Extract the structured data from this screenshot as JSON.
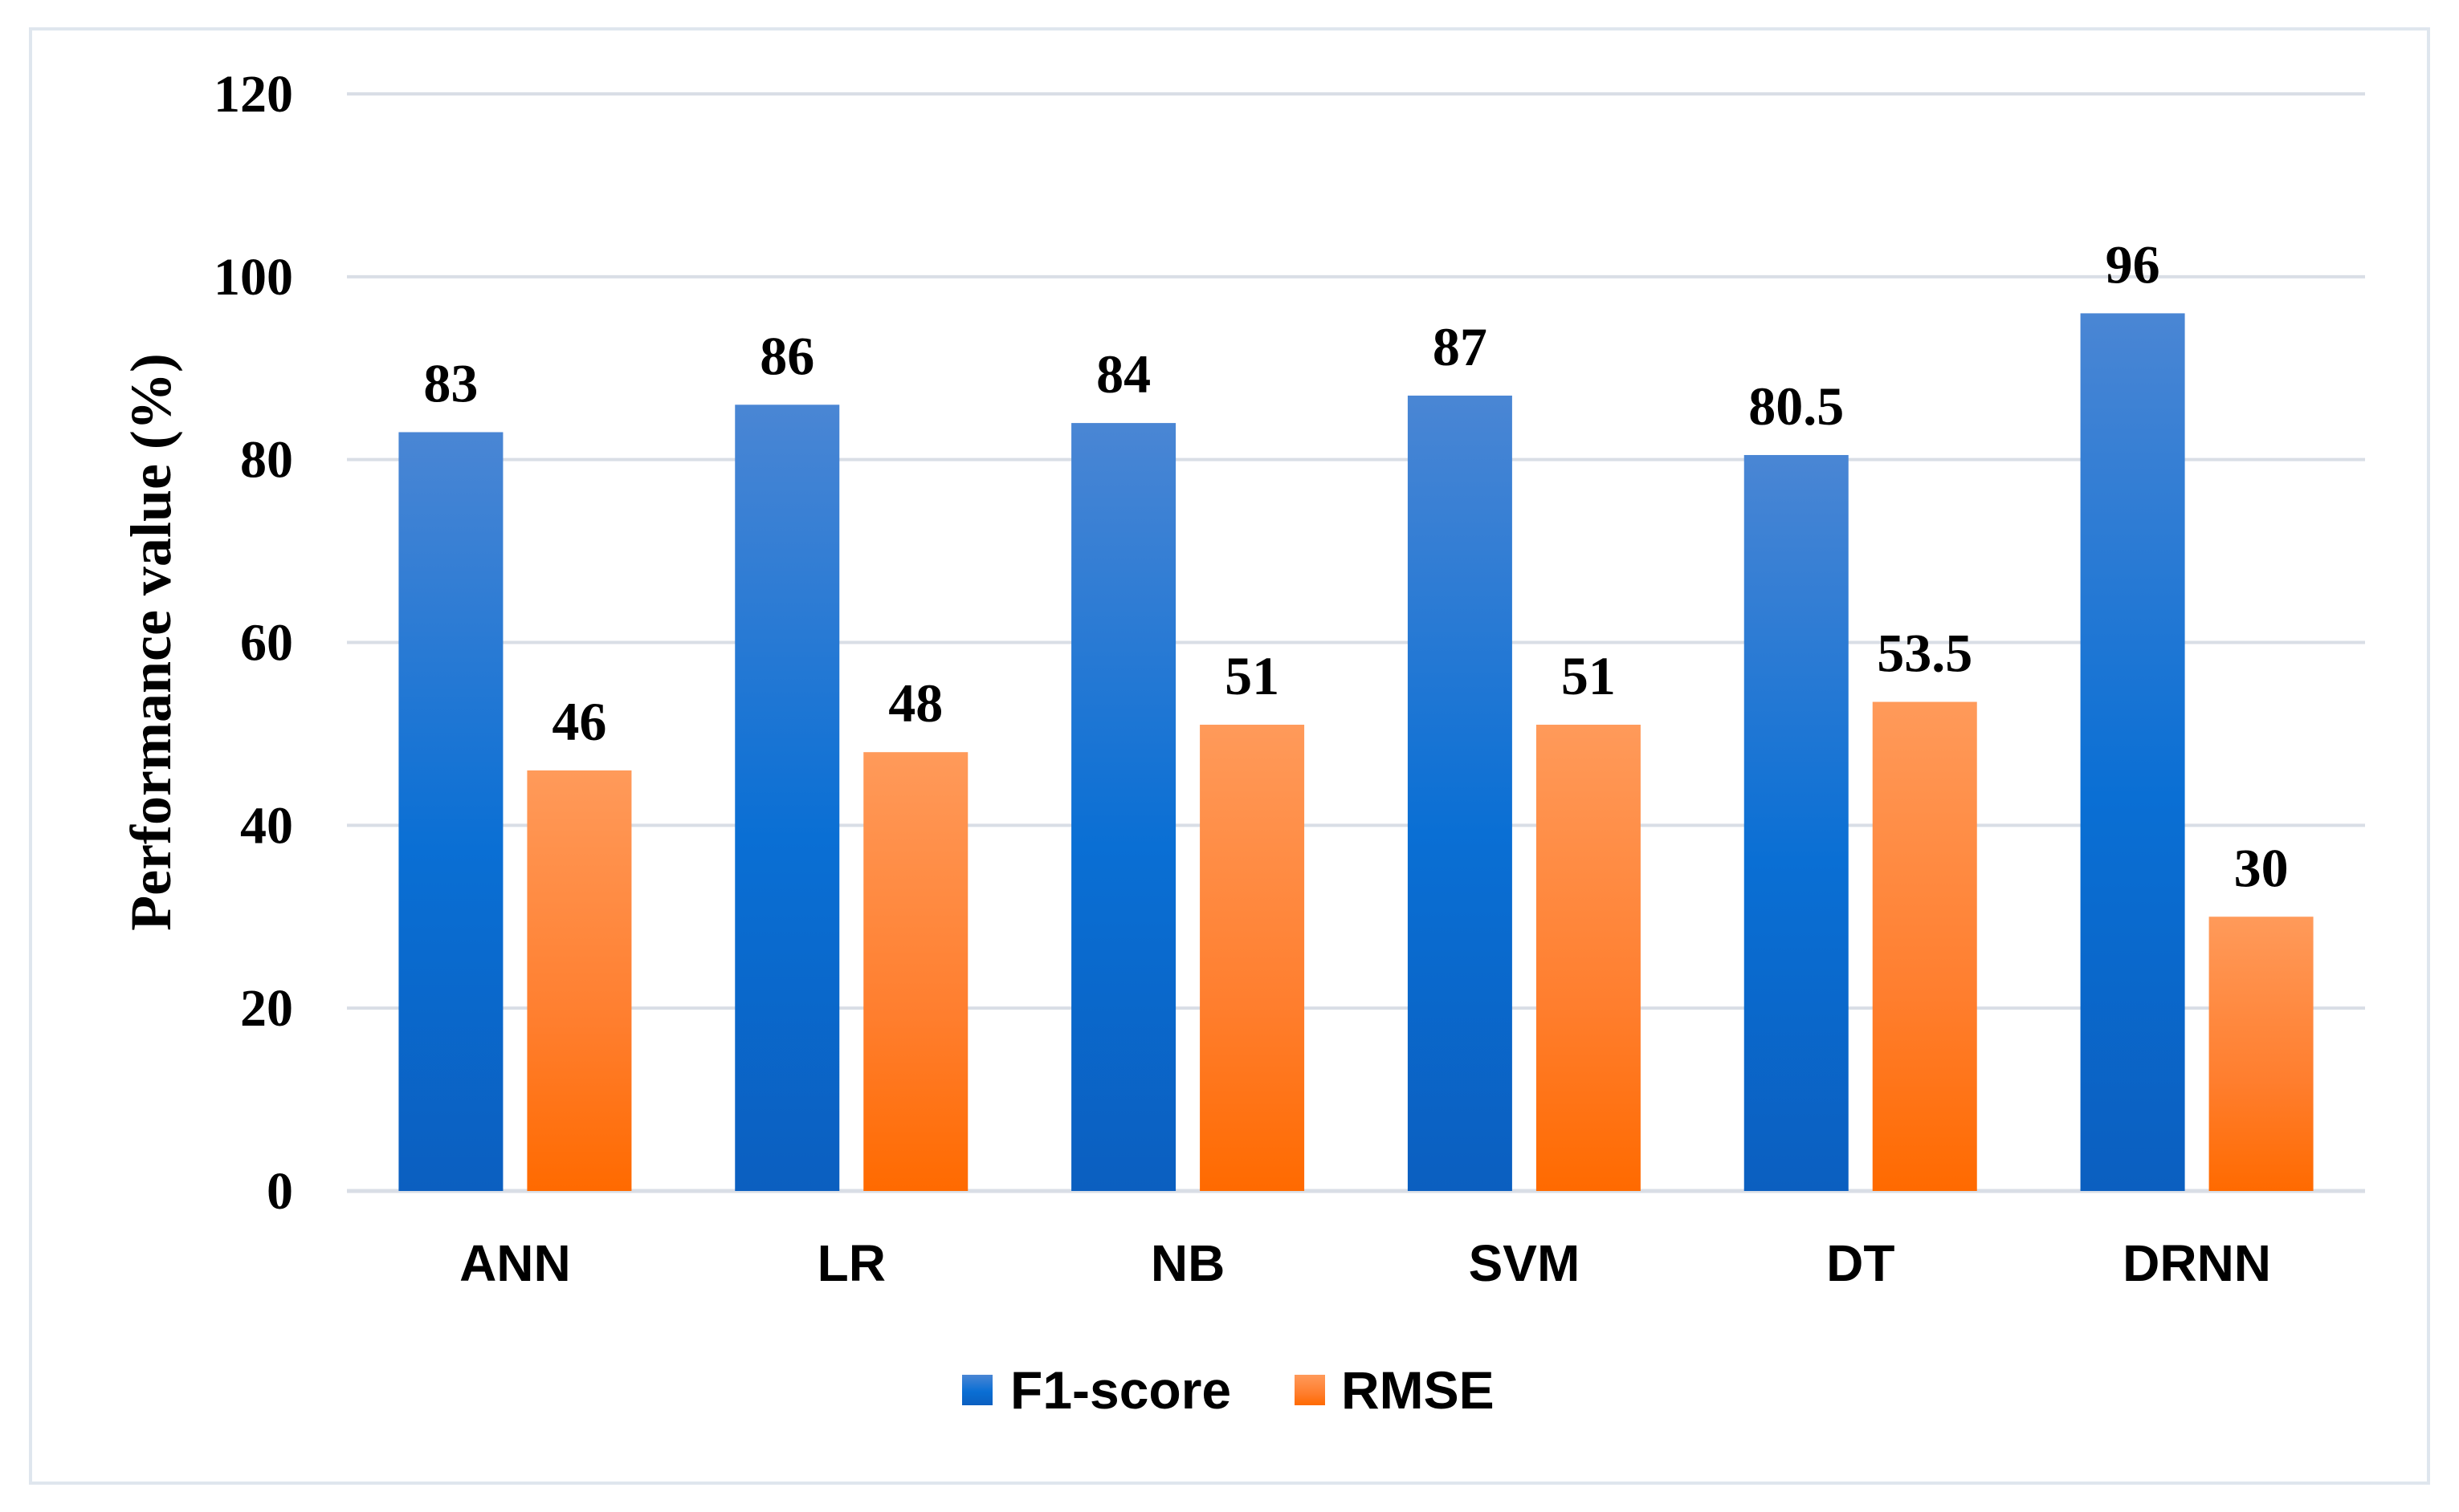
{
  "chart_data": {
    "type": "bar",
    "title": "",
    "xlabel": "",
    "ylabel": "Performance value (%)",
    "ylim": [
      0,
      120
    ],
    "yticks": [
      0,
      20,
      40,
      60,
      80,
      100,
      120
    ],
    "grid": true,
    "legend_position": "bottom-center",
    "categories": [
      "ANN",
      "LR",
      "NB",
      "SVM",
      "DT",
      "DRNN"
    ],
    "series": [
      {
        "name": "F1-score",
        "values": [
          83,
          86,
          84,
          87,
          80.5,
          96
        ],
        "labels": [
          "83",
          "86",
          "84",
          "87",
          "80.5",
          "96"
        ],
        "color": "#1f6fd1"
      },
      {
        "name": "RMSE",
        "values": [
          46,
          48,
          51,
          51,
          53.5,
          30
        ],
        "labels": [
          "46",
          "48",
          "51",
          "51",
          "53.5",
          "30"
        ],
        "color": "#ff7a1f"
      }
    ]
  }
}
